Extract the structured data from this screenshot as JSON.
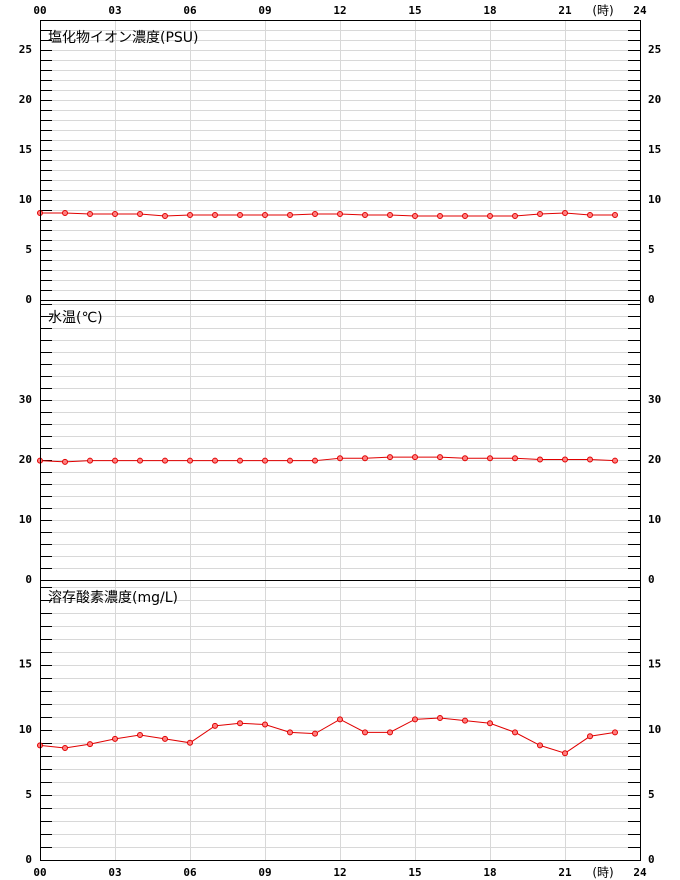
{
  "chart_data": [
    {
      "type": "line",
      "title": "塩化物イオン濃度(PSU)",
      "x": [
        0,
        1,
        2,
        3,
        4,
        5,
        6,
        7,
        8,
        9,
        10,
        11,
        12,
        13,
        14,
        15,
        16,
        17,
        18,
        19,
        20,
        21,
        22,
        23
      ],
      "series": [
        {
          "color": "#e00000",
          "values": [
            8.7,
            8.7,
            8.6,
            8.6,
            8.6,
            8.4,
            8.5,
            8.5,
            8.5,
            8.5,
            8.5,
            8.6,
            8.6,
            8.5,
            8.5,
            8.4,
            8.4,
            8.4,
            8.4,
            8.4,
            8.6,
            8.7,
            8.5,
            8.5
          ]
        }
      ],
      "xlim": [
        0,
        24
      ],
      "xticks": [
        {
          "value": 0,
          "label": "00"
        },
        {
          "value": 3,
          "label": "03"
        },
        {
          "value": 6,
          "label": "06"
        },
        {
          "value": 9,
          "label": "09"
        },
        12,
        15,
        18,
        21,
        24
      ],
      "x_unit": "(時)",
      "xaxis_position": "top",
      "ylim": [
        0,
        28
      ],
      "yticks": [
        0,
        5,
        10,
        15,
        20,
        25
      ],
      "minor_step": 1,
      "grid": true
    },
    {
      "type": "line",
      "title": "水温(℃)",
      "x": [
        0,
        1,
        2,
        3,
        4,
        5,
        6,
        7,
        8,
        9,
        10,
        11,
        12,
        13,
        14,
        15,
        16,
        17,
        18,
        19,
        20,
        21,
        22,
        23
      ],
      "series": [
        {
          "color": "#e00000",
          "values": [
            19.9,
            19.7,
            19.9,
            19.9,
            19.9,
            19.9,
            19.9,
            19.9,
            19.9,
            19.9,
            19.9,
            19.9,
            20.3,
            20.3,
            20.5,
            20.5,
            20.5,
            20.3,
            20.3,
            20.3,
            20.1,
            20.1,
            20.1,
            19.9
          ]
        }
      ],
      "xlim": [
        0,
        24
      ],
      "ylim": [
        0,
        46.7
      ],
      "yticks": [
        0,
        10,
        20,
        30
      ],
      "minor_step": 2,
      "grid": true
    },
    {
      "type": "line",
      "title": "溶存酸素濃度(mg/L)",
      "x": [
        0,
        1,
        2,
        3,
        4,
        5,
        6,
        7,
        8,
        9,
        10,
        11,
        12,
        13,
        14,
        15,
        16,
        17,
        18,
        19,
        20,
        21,
        22,
        23
      ],
      "series": [
        {
          "color": "#e00000",
          "values": [
            8.8,
            8.6,
            8.9,
            9.3,
            9.6,
            9.3,
            9.0,
            10.3,
            10.5,
            10.4,
            9.8,
            9.7,
            10.8,
            9.8,
            9.8,
            10.8,
            10.9,
            10.7,
            10.5,
            9.8,
            8.8,
            8.2,
            9.5,
            9.8
          ]
        }
      ],
      "xlim": [
        0,
        24
      ],
      "xticks": [
        {
          "value": 0,
          "label": "00"
        },
        {
          "value": 3,
          "label": "03"
        },
        {
          "value": 6,
          "label": "06"
        },
        {
          "value": 9,
          "label": "09"
        },
        12,
        15,
        18,
        21,
        24
      ],
      "x_unit": "(時)",
      "xaxis_position": "bottom",
      "ylim": [
        0,
        21.5
      ],
      "yticks": [
        0,
        5,
        10,
        15
      ],
      "minor_step": 1,
      "grid": true
    }
  ]
}
